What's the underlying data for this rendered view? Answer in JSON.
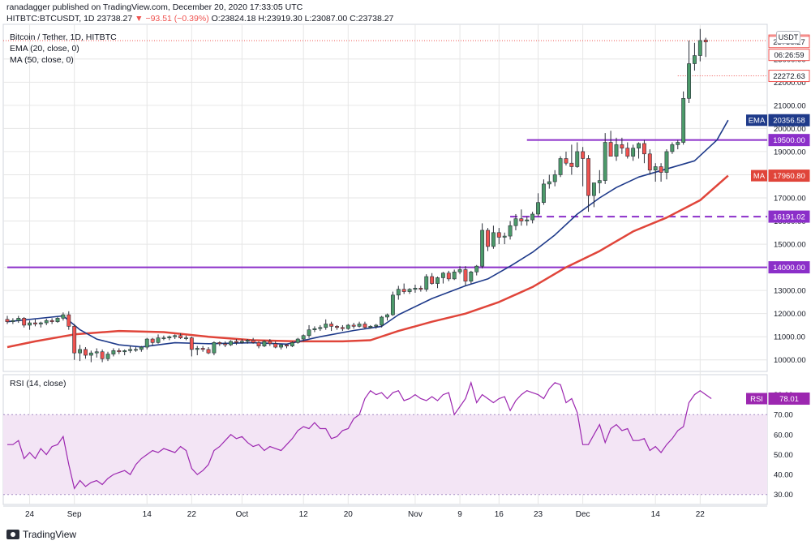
{
  "header": {
    "published": "ranadagger published on TradingView.com, December 20, 2020 17:33:05 UTC",
    "symbol": "HITBTC:BTCUSDT, 1D",
    "last": "23738.27",
    "change": "▼ −93.51 (−0.39%)",
    "ohlc": "O:23824.18 H:23919.30 L:23087.00 C:23738.27"
  },
  "legend": {
    "title": "Bitcoin / Tether, 1D, HITBTC",
    "ema": "EMA (20, close, 0)",
    "ma": "MA (50, close, 0)",
    "rsi": "RSI (14, close)"
  },
  "currency_badge": "USDT",
  "footer": {
    "brand": "TradingView"
  },
  "colors": {
    "up": "#4c9a6a",
    "down": "#ef5350",
    "ema": "#1e3a8a",
    "ma": "#e0453a",
    "level": "#8b2fc9",
    "rsi_line": "#9c27b0",
    "rsi_band": "#f3e5f5",
    "grid": "#e6e6e6"
  },
  "chart_data": [
    {
      "type": "candlestick",
      "title": "Bitcoin / Tether, 1D, HITBTC",
      "ylim": [
        9500,
        24500
      ],
      "price_ticks": [
        10000,
        11000,
        12000,
        13000,
        14000,
        15000,
        16000,
        17000,
        18000,
        19000,
        20000,
        21000,
        22000,
        23000
      ],
      "x_tick_labels": [
        "24",
        "Sep",
        "14",
        "22",
        "Oct",
        "12",
        "20",
        "Nov",
        "9",
        "16",
        "23",
        "Dec",
        "14",
        "22"
      ],
      "x_tick_dates": [
        "2020-08-24",
        "2020-09-01",
        "2020-09-14",
        "2020-09-22",
        "2020-10-01",
        "2020-10-12",
        "2020-10-20",
        "2020-11-01",
        "2020-11-09",
        "2020-11-16",
        "2020-11-23",
        "2020-12-01",
        "2020-12-14",
        "2020-12-22"
      ],
      "first_date": "2020-08-20",
      "x_end_date": "2021-01-03",
      "candles_ohlc": [
        [
          11750,
          11900,
          11550,
          11650
        ],
        [
          11650,
          11800,
          11550,
          11700
        ],
        [
          11700,
          11900,
          11600,
          11800
        ],
        [
          11800,
          11850,
          11400,
          11500
        ],
        [
          11500,
          11700,
          11300,
          11600
        ],
        [
          11600,
          11750,
          11450,
          11550
        ],
        [
          11550,
          11650,
          11400,
          11600
        ],
        [
          11600,
          11780,
          11500,
          11700
        ],
        [
          11700,
          11800,
          11550,
          11650
        ],
        [
          11650,
          11850,
          11600,
          11800
        ],
        [
          11800,
          12050,
          11700,
          11950
        ],
        [
          11950,
          12100,
          11300,
          11450
        ],
        [
          11450,
          11550,
          10000,
          10300
        ],
        [
          10300,
          10650,
          9950,
          10450
        ],
        [
          10450,
          10550,
          10050,
          10200
        ],
        [
          10200,
          10400,
          9900,
          10300
        ],
        [
          10300,
          10500,
          10100,
          10350
        ],
        [
          10350,
          10450,
          9900,
          10050
        ],
        [
          10050,
          10350,
          9950,
          10250
        ],
        [
          10250,
          10500,
          10150,
          10400
        ],
        [
          10400,
          10500,
          10250,
          10350
        ],
        [
          10350,
          10450,
          10200,
          10400
        ],
        [
          10400,
          10600,
          10300,
          10450
        ],
        [
          10450,
          10550,
          10350,
          10450
        ],
        [
          10450,
          10600,
          10350,
          10550
        ],
        [
          10550,
          10950,
          10450,
          10900
        ],
        [
          10900,
          10950,
          10600,
          10750
        ],
        [
          10750,
          11100,
          10700,
          10950
        ],
        [
          10950,
          11050,
          10850,
          10950
        ],
        [
          10950,
          11050,
          10850,
          11000
        ],
        [
          11000,
          11100,
          10900,
          11050
        ],
        [
          11050,
          11150,
          10900,
          10950
        ],
        [
          10950,
          11050,
          10850,
          10950
        ],
        [
          10950,
          11000,
          10150,
          10450
        ],
        [
          10450,
          10600,
          10200,
          10500
        ],
        [
          10500,
          10600,
          10350,
          10450
        ],
        [
          10450,
          10550,
          10250,
          10300
        ],
        [
          10300,
          10800,
          10200,
          10750
        ],
        [
          10750,
          10800,
          10600,
          10700
        ],
        [
          10700,
          10800,
          10550,
          10650
        ],
        [
          10650,
          10850,
          10600,
          10800
        ],
        [
          10800,
          10900,
          10650,
          10750
        ],
        [
          10750,
          10900,
          10700,
          10800
        ],
        [
          10800,
          10900,
          10700,
          10850
        ],
        [
          10850,
          10950,
          10700,
          10750
        ],
        [
          10750,
          10800,
          10500,
          10600
        ],
        [
          10600,
          10850,
          10550,
          10800
        ],
        [
          10800,
          10900,
          10600,
          10700
        ],
        [
          10700,
          10800,
          10500,
          10550
        ],
        [
          10550,
          10700,
          10450,
          10650
        ],
        [
          10650,
          10700,
          10500,
          10600
        ],
        [
          10600,
          10800,
          10550,
          10750
        ],
        [
          10750,
          10950,
          10700,
          10900
        ],
        [
          10900,
          11100,
          10800,
          11050
        ],
        [
          11050,
          11500,
          10950,
          11300
        ],
        [
          11300,
          11450,
          11200,
          11350
        ],
        [
          11350,
          11500,
          11250,
          11400
        ],
        [
          11400,
          11750,
          11300,
          11550
        ],
        [
          11550,
          11650,
          11250,
          11450
        ],
        [
          11450,
          11500,
          11300,
          11400
        ],
        [
          11400,
          11500,
          11250,
          11350
        ],
        [
          11350,
          11550,
          11300,
          11500
        ],
        [
          11500,
          11600,
          11350,
          11450
        ],
        [
          11450,
          11650,
          11400,
          11550
        ],
        [
          11550,
          11650,
          11350,
          11400
        ],
        [
          11400,
          11500,
          11350,
          11450
        ],
        [
          11450,
          11550,
          11350,
          11500
        ],
        [
          11500,
          11900,
          11400,
          11850
        ],
        [
          11850,
          12000,
          11700,
          11950
        ],
        [
          11950,
          12950,
          11900,
          12800
        ],
        [
          12800,
          13200,
          12600,
          13050
        ],
        [
          13050,
          13300,
          12850,
          12950
        ],
        [
          12950,
          13100,
          12850,
          13050
        ],
        [
          13050,
          13250,
          12900,
          13100
        ],
        [
          13100,
          13200,
          12950,
          13050
        ],
        [
          13050,
          13700,
          12950,
          13600
        ],
        [
          13600,
          13750,
          13250,
          13300
        ],
        [
          13300,
          13600,
          13100,
          13550
        ],
        [
          13550,
          13800,
          13300,
          13750
        ],
        [
          13750,
          13850,
          13400,
          13500
        ],
        [
          13500,
          13900,
          13450,
          13800
        ],
        [
          13800,
          14050,
          13700,
          13900
        ],
        [
          13900,
          14050,
          13200,
          13400
        ],
        [
          13400,
          13850,
          13300,
          13800
        ],
        [
          13800,
          14100,
          13650,
          14050
        ],
        [
          14050,
          15900,
          13950,
          15600
        ],
        [
          15600,
          15700,
          14700,
          14900
        ],
        [
          14900,
          15800,
          14800,
          15500
        ],
        [
          15500,
          15700,
          15000,
          15300
        ],
        [
          15300,
          15500,
          15000,
          15350
        ],
        [
          15350,
          16000,
          15200,
          15800
        ],
        [
          15800,
          16300,
          15600,
          16100
        ],
        [
          16100,
          16500,
          15800,
          16000
        ],
        [
          16000,
          16200,
          15800,
          16050
        ],
        [
          16050,
          16400,
          15900,
          16300
        ],
        [
          16300,
          17200,
          16200,
          16800
        ],
        [
          16800,
          17800,
          16700,
          17600
        ],
        [
          17600,
          18000,
          17400,
          17700
        ],
        [
          17700,
          18200,
          17500,
          18000
        ],
        [
          18000,
          18800,
          17900,
          18700
        ],
        [
          18700,
          19000,
          18400,
          18500
        ],
        [
          18500,
          19300,
          18000,
          18350
        ],
        [
          18350,
          19400,
          18300,
          19000
        ],
        [
          19000,
          19200,
          17500,
          18700
        ],
        [
          18700,
          18850,
          16400,
          17100
        ],
        [
          17100,
          17500,
          16600,
          17650
        ],
        [
          17650,
          18200,
          17200,
          17750
        ],
        [
          17750,
          19800,
          17600,
          19400
        ],
        [
          19400,
          19900,
          18800,
          18800
        ],
        [
          18800,
          19600,
          18600,
          19300
        ],
        [
          19300,
          19600,
          18900,
          19150
        ],
        [
          19150,
          19400,
          18700,
          18800
        ],
        [
          18800,
          19300,
          18600,
          19150
        ],
        [
          19150,
          19400,
          18700,
          19350
        ],
        [
          19350,
          19500,
          18500,
          18900
        ],
        [
          18900,
          19100,
          18000,
          18200
        ],
        [
          18200,
          18500,
          17700,
          18350
        ],
        [
          18350,
          18500,
          17700,
          18100
        ],
        [
          18100,
          19100,
          17800,
          19000
        ],
        [
          19000,
          19400,
          18900,
          19300
        ],
        [
          19300,
          19500,
          19100,
          19400
        ],
        [
          19400,
          21600,
          19300,
          21300
        ],
        [
          21300,
          23800,
          21100,
          22800
        ],
        [
          22800,
          23700,
          22500,
          23150
        ],
        [
          23150,
          24300,
          22900,
          23800
        ],
        [
          23824.18,
          23919.3,
          23087.0,
          23738.27
        ]
      ],
      "ema20": [
        [
          0,
          11650
        ],
        [
          10,
          11900
        ],
        [
          13,
          11300
        ],
        [
          16,
          10900
        ],
        [
          20,
          10650
        ],
        [
          24,
          10560
        ],
        [
          30,
          10740
        ],
        [
          36,
          10700
        ],
        [
          44,
          10740
        ],
        [
          50,
          10680
        ],
        [
          56,
          11000
        ],
        [
          62,
          11270
        ],
        [
          67,
          11450
        ],
        [
          70,
          11950
        ],
        [
          76,
          12650
        ],
        [
          82,
          13200
        ],
        [
          86,
          13500
        ],
        [
          90,
          14050
        ],
        [
          94,
          14650
        ],
        [
          98,
          15400
        ],
        [
          102,
          16300
        ],
        [
          106,
          17000
        ],
        [
          109,
          17450
        ],
        [
          113,
          17900
        ],
        [
          118,
          18250
        ],
        [
          123,
          18600
        ],
        [
          127,
          19500
        ],
        [
          129,
          20356.58
        ]
      ],
      "ma50": [
        [
          0,
          10550
        ],
        [
          5,
          10800
        ],
        [
          12,
          11100
        ],
        [
          20,
          11250
        ],
        [
          28,
          11200
        ],
        [
          36,
          11000
        ],
        [
          44,
          10850
        ],
        [
          52,
          10800
        ],
        [
          60,
          10800
        ],
        [
          65,
          10850
        ],
        [
          70,
          11250
        ],
        [
          76,
          11650
        ],
        [
          82,
          12000
        ],
        [
          88,
          12500
        ],
        [
          94,
          13150
        ],
        [
          100,
          14000
        ],
        [
          106,
          14700
        ],
        [
          112,
          15550
        ],
        [
          118,
          16150
        ],
        [
          124,
          16900
        ],
        [
          129,
          17960.8
        ]
      ],
      "levels": [
        {
          "price": 14000,
          "label": "14000.00",
          "style": "solid",
          "x_from_date": "2020-08-20"
        },
        {
          "price": 16191.02,
          "label": "16191.02",
          "style": "dashed",
          "x_from_date": "2020-11-18"
        },
        {
          "price": 19500,
          "label": "19500.00",
          "style": "solid",
          "x_from_date": "2020-11-21"
        }
      ],
      "price_labels": [
        {
          "text": "23795.29",
          "price": 23795.29,
          "style": "outline"
        },
        {
          "text": "23738.27",
          "price": 23738.27,
          "style": "outline"
        },
        {
          "text": "06:26:59",
          "price": 23180,
          "style": "outline"
        },
        {
          "text": "22272.63",
          "price": 22272.63,
          "style": "outline"
        },
        {
          "text": "EMA",
          "value_text": "20356.58",
          "price": 20356.58,
          "style": "ema"
        },
        {
          "text": "19500.00",
          "price": 19500,
          "style": "level"
        },
        {
          "text": "MA",
          "value_text": "17960.80",
          "price": 17960.8,
          "style": "ma"
        },
        {
          "text": "16191.02",
          "price": 16191.02,
          "style": "level"
        },
        {
          "text": "14000.00",
          "price": 14000,
          "style": "level"
        }
      ]
    },
    {
      "type": "line",
      "title": "RSI (14, close)",
      "ylim": [
        25,
        90
      ],
      "ticks": [
        30.0,
        40.0,
        50.0,
        60.0,
        70.0,
        80.0
      ],
      "band": [
        30,
        70
      ],
      "last_label": "RSI",
      "last_value": "78.01",
      "values": [
        55,
        55,
        57,
        48,
        51,
        48,
        53,
        50,
        54,
        55,
        59,
        45,
        33,
        37,
        34,
        36,
        37,
        35,
        38,
        40,
        41,
        42,
        40,
        45,
        48,
        50,
        52,
        51,
        53,
        52,
        51,
        54,
        52,
        43,
        40,
        42,
        45,
        52,
        54,
        57,
        60,
        58,
        59,
        56,
        54,
        55,
        52,
        54,
        53,
        52,
        55,
        58,
        62,
        64,
        63,
        66,
        63,
        63,
        58,
        59,
        62,
        63,
        68,
        70,
        78,
        82,
        80,
        81,
        78,
        81,
        82,
        77,
        78,
        80,
        78,
        77,
        79,
        77,
        80,
        81,
        70,
        74,
        78,
        86,
        76,
        80,
        78,
        76,
        78,
        79,
        72,
        77,
        80,
        82,
        81,
        80,
        78,
        83,
        86,
        85,
        76,
        78,
        71,
        55,
        55,
        60,
        65,
        56,
        63,
        65,
        62,
        63,
        57,
        57,
        58,
        52,
        54,
        51,
        55,
        58,
        62,
        64,
        76,
        80,
        82,
        80,
        78.01
      ]
    }
  ]
}
